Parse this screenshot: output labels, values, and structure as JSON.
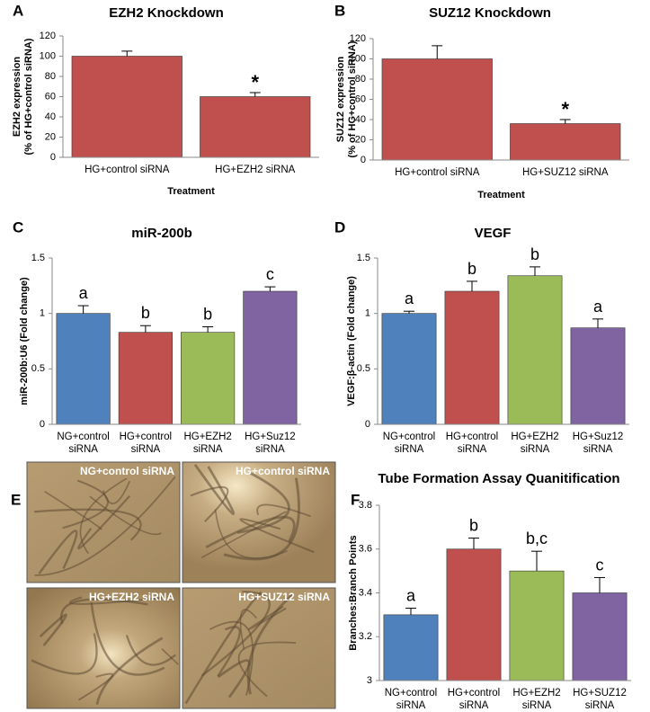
{
  "chart_data": [
    {
      "type": "bar",
      "panel_label": "A",
      "title": "EZH2 Knockdown",
      "ylabel": [
        "EZH2 expression",
        "(% of HG+control siRNA)"
      ],
      "xlabel": "Treatment",
      "categories": [
        [
          "HG+control siRNA"
        ],
        [
          "HG+EZH2 siRNA"
        ]
      ],
      "values": [
        100,
        60
      ],
      "errors": [
        5,
        4
      ],
      "color": "#c0504d",
      "annotations": [
        {
          "index": 1,
          "text": "*"
        }
      ],
      "ylim": [
        0,
        120
      ],
      "yticks": [
        0,
        20,
        40,
        60,
        80,
        100,
        120
      ]
    },
    {
      "type": "bar",
      "panel_label": "B",
      "title": "SUZ12 Knockdown",
      "ylabel": [
        "SUZ12 expression",
        "(% of HG+control siRNA)"
      ],
      "xlabel": "Treatment",
      "categories": [
        [
          "HG+control siRNA"
        ],
        [
          "HG+SUZ12 siRNA"
        ]
      ],
      "values": [
        100,
        36
      ],
      "errors": [
        13,
        4
      ],
      "color": "#c0504d",
      "annotations": [
        {
          "index": 1,
          "text": "*"
        }
      ],
      "ylim": [
        0,
        120
      ],
      "yticks": [
        0,
        20,
        40,
        60,
        80,
        100,
        120
      ]
    },
    {
      "type": "bar",
      "panel_label": "C",
      "title": "miR-200b",
      "ylabel": [
        "miR-200b:U6 (Fold change)"
      ],
      "categories": [
        [
          "NG+control",
          "siRNA"
        ],
        [
          "HG+control",
          "siRNA"
        ],
        [
          "HG+EZH2",
          "siRNA"
        ],
        [
          "HG+Suz12",
          "siRNA"
        ]
      ],
      "values": [
        1.0,
        0.83,
        0.83,
        1.2
      ],
      "errors": [
        0.07,
        0.06,
        0.05,
        0.04
      ],
      "colors": [
        "#4f81bd",
        "#c0504d",
        "#9bbb59",
        "#8064a2"
      ],
      "bar_labels": [
        "a",
        "b",
        "b",
        "c"
      ],
      "ylim": [
        0,
        1.5
      ],
      "yticks": [
        0,
        0.5,
        1,
        1.5
      ]
    },
    {
      "type": "bar",
      "panel_label": "D",
      "title": "VEGF",
      "ylabel": [
        "VEGF:β-actin (Fold change)"
      ],
      "categories": [
        [
          "NG+control",
          "siRNA"
        ],
        [
          "HG+control",
          "siRNA"
        ],
        [
          "HG+EZH2",
          "siRNA"
        ],
        [
          "HG+Suz12",
          "siRNA"
        ]
      ],
      "values": [
        1.0,
        1.2,
        1.34,
        0.87
      ],
      "errors": [
        0.02,
        0.09,
        0.08,
        0.08
      ],
      "colors": [
        "#4f81bd",
        "#c0504d",
        "#9bbb59",
        "#8064a2"
      ],
      "bar_labels": [
        "a",
        "b",
        "b",
        "a"
      ],
      "ylim": [
        0,
        1.5
      ],
      "yticks": [
        0,
        0.5,
        1,
        1.5
      ]
    },
    {
      "type": "bar",
      "panel_label": "F",
      "title": "Tube Formation Assay Quanitification",
      "ylabel": [
        "Branches:Branch Points"
      ],
      "categories": [
        [
          "NG+control",
          "siRNA"
        ],
        [
          "HG+control",
          "siRNA"
        ],
        [
          "HG+EZH2",
          "siRNA"
        ],
        [
          "HG+SUZ12",
          "siRNA"
        ]
      ],
      "values": [
        3.3,
        3.6,
        3.5,
        3.4
      ],
      "errors": [
        0.03,
        0.05,
        0.09,
        0.07
      ],
      "colors": [
        "#4f81bd",
        "#c0504d",
        "#9bbb59",
        "#8064a2"
      ],
      "bar_labels": [
        "a",
        "b",
        "b,c",
        "c"
      ],
      "ylim": [
        3,
        3.8
      ],
      "yticks": [
        3,
        3.2,
        3.4,
        3.6,
        3.8
      ]
    }
  ],
  "micrographs": {
    "panel_label": "E",
    "images": [
      "NG+control siRNA",
      "HG+control siRNA",
      "HG+EZH2 siRNA",
      "HG+SUZ12 siRNA"
    ]
  }
}
